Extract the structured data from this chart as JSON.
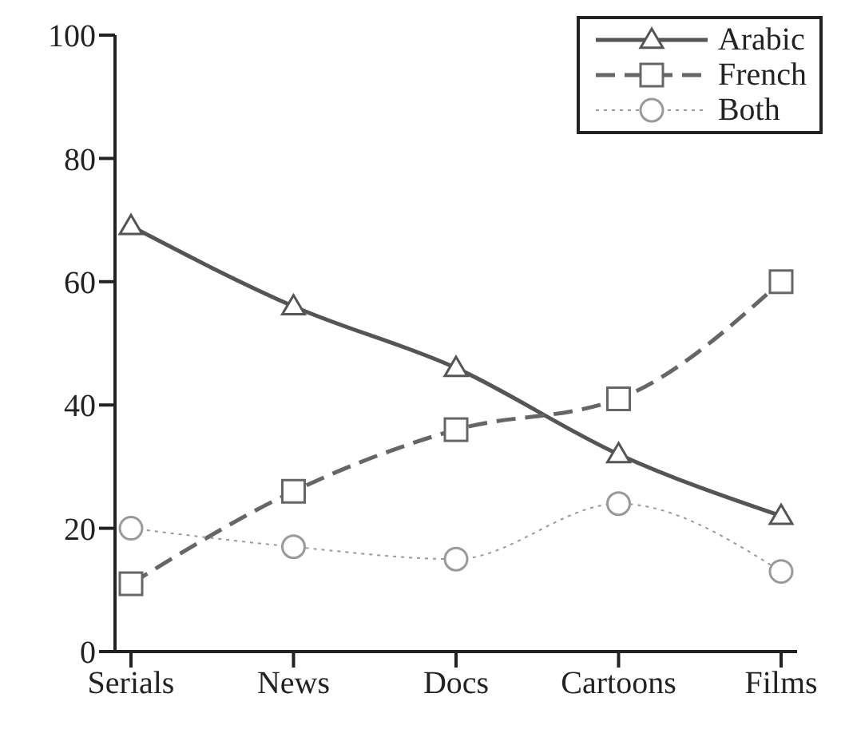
{
  "chart_data": {
    "type": "line",
    "categories": [
      "Serials",
      "News",
      "Docs",
      "Cartoons",
      "Films"
    ],
    "series": [
      {
        "name": "Arabic",
        "color": "#555555",
        "values": [
          69,
          56,
          46,
          32,
          22
        ],
        "marker": "triangle",
        "line_style": "solid"
      },
      {
        "name": "French",
        "color": "#666666",
        "values": [
          11,
          26,
          36,
          41,
          60
        ],
        "marker": "square",
        "line_style": "dashed"
      },
      {
        "name": "Both",
        "color": "#999999",
        "values": [
          20,
          17,
          15,
          24,
          13
        ],
        "marker": "circle",
        "line_style": "dotted"
      }
    ],
    "ylim": [
      0,
      100
    ],
    "yticks": [
      0,
      20,
      40,
      60,
      80,
      100
    ],
    "grid": false,
    "legend": "top right"
  }
}
